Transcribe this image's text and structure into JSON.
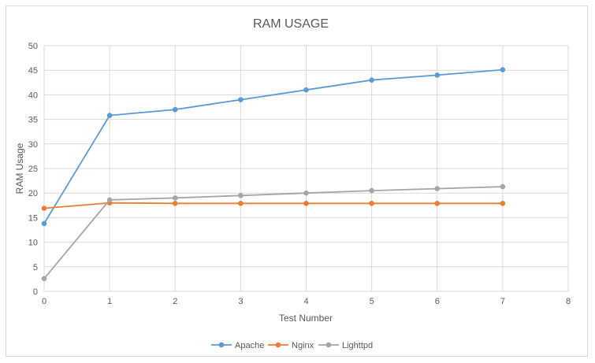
{
  "chart_data": {
    "type": "line",
    "title": "RAM USAGE",
    "xlabel": "Test Number",
    "ylabel": "RAM Usage",
    "xlim": [
      0,
      8
    ],
    "ylim": [
      0,
      50
    ],
    "x_ticks": [
      0,
      1,
      2,
      3,
      4,
      5,
      6,
      7,
      8
    ],
    "y_ticks": [
      0,
      5,
      10,
      15,
      20,
      25,
      30,
      35,
      40,
      45,
      50
    ],
    "grid": true,
    "legend_position": "bottom",
    "x": [
      0,
      1,
      2,
      3,
      4,
      5,
      6,
      7
    ],
    "series": [
      {
        "name": "Apache",
        "color": "#5b9bd5",
        "values": [
          13.8,
          35.8,
          37.0,
          39.0,
          41.0,
          43.0,
          44.0,
          45.1
        ]
      },
      {
        "name": "Nginx",
        "color": "#ed7d31",
        "values": [
          16.9,
          18.0,
          17.9,
          17.9,
          17.9,
          17.9,
          17.9,
          17.9
        ]
      },
      {
        "name": "Lighttpd",
        "color": "#a5a5a5",
        "values": [
          2.6,
          18.6,
          19.0,
          19.5,
          20.0,
          20.5,
          20.9,
          21.3
        ]
      }
    ]
  }
}
